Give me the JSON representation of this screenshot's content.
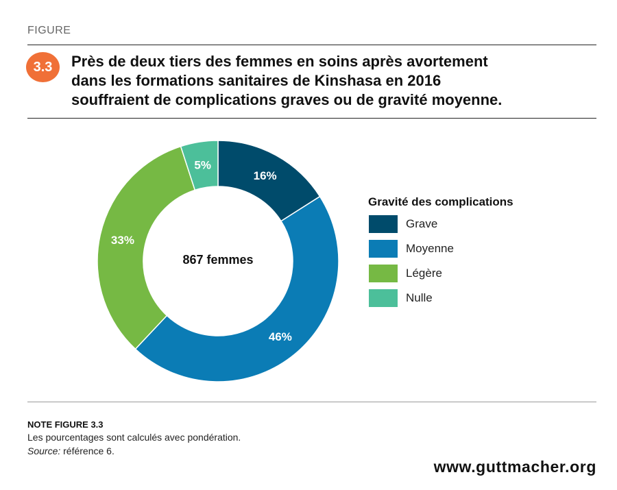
{
  "header": {
    "figure_label": "FIGURE",
    "figure_number": "3.3",
    "title_lines": [
      "Près de deux tiers des femmes en soins après avortement",
      "dans les formations sanitaires de Kinshasa en 2016",
      "souffraient de complications graves ou de gravité moyenne."
    ]
  },
  "colors": {
    "badge": "#f07037",
    "grave": "#004b6b",
    "moyenne": "#0b7cb5",
    "legere": "#76b944",
    "nulle": "#4cbf9a"
  },
  "chart_data": {
    "type": "pie",
    "donut": true,
    "center_label": "867 femmes",
    "legend_title": "Gravité des complications",
    "legend_position": "right",
    "start": "top",
    "direction": "clockwise",
    "slices": [
      {
        "label": "Grave",
        "value": 16,
        "display": "16%",
        "color": "#004b6b"
      },
      {
        "label": "Moyenne",
        "value": 46,
        "display": "46%",
        "color": "#0b7cb5"
      },
      {
        "label": "Légère",
        "value": 33,
        "display": "33%",
        "color": "#76b944"
      },
      {
        "label": "Nulle",
        "value": 5,
        "display": "5%",
        "color": "#4cbf9a"
      }
    ]
  },
  "note": {
    "title": "NOTE FIGURE 3.3",
    "text": "Les pourcentages sont calculés avec pondération.",
    "source_label": "Source:",
    "source_text": " référence 6."
  },
  "footer": {
    "website": "www.guttmacher.org"
  }
}
